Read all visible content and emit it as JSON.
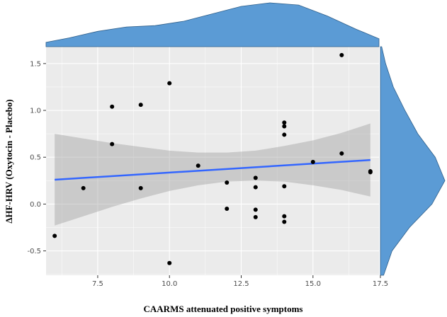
{
  "chart_data": {
    "type": "scatter",
    "title": "",
    "xlabel": "CAARMS attenuated positive symptoms",
    "ylabel": "ΔHF-HRV (Oxytocin - Placebo)",
    "xlim": [
      5.7,
      17.3
    ],
    "ylim": [
      -0.76,
      1.68
    ],
    "x_ticks": [
      7.5,
      10.0,
      12.5,
      15.0,
      17.5
    ],
    "x_tick_labels": [
      "7.5",
      "10.0",
      "12.5",
      "15.0",
      "17.5"
    ],
    "y_ticks": [
      -0.5,
      0.0,
      0.5,
      1.0,
      1.5
    ],
    "y_tick_labels": [
      "-0.5",
      "0.0",
      "0.5",
      "1.0",
      "1.5"
    ],
    "grid": true,
    "series": [
      {
        "name": "observations",
        "points": [
          {
            "x": 6,
            "y": -0.34
          },
          {
            "x": 7,
            "y": 0.17
          },
          {
            "x": 8,
            "y": 1.04
          },
          {
            "x": 8,
            "y": 0.64
          },
          {
            "x": 9,
            "y": 1.06
          },
          {
            "x": 9,
            "y": 0.17
          },
          {
            "x": 10,
            "y": 1.29
          },
          {
            "x": 10,
            "y": -0.63
          },
          {
            "x": 11,
            "y": 0.41
          },
          {
            "x": 12,
            "y": 0.23
          },
          {
            "x": 12,
            "y": -0.05
          },
          {
            "x": 13,
            "y": 0.28
          },
          {
            "x": 13,
            "y": 0.18
          },
          {
            "x": 13,
            "y": -0.06
          },
          {
            "x": 13,
            "y": -0.14
          },
          {
            "x": 14,
            "y": 0.87
          },
          {
            "x": 14,
            "y": 0.83
          },
          {
            "x": 14,
            "y": 0.74
          },
          {
            "x": 14,
            "y": 0.19
          },
          {
            "x": 14,
            "y": -0.13
          },
          {
            "x": 14,
            "y": -0.19
          },
          {
            "x": 15,
            "y": 0.45
          },
          {
            "x": 16,
            "y": 1.59
          },
          {
            "x": 16,
            "y": 0.54
          },
          {
            "x": 17,
            "y": 0.35
          },
          {
            "x": 17,
            "y": 0.34
          }
        ]
      }
    ],
    "regression": {
      "x": [
        6,
        17
      ],
      "y": [
        0.26,
        0.47
      ],
      "ci_x": [
        6,
        7,
        8,
        9,
        10,
        11,
        12,
        13,
        14,
        15,
        16,
        17
      ],
      "ci_upper": [
        0.75,
        0.7,
        0.65,
        0.61,
        0.57,
        0.55,
        0.55,
        0.57,
        0.62,
        0.68,
        0.76,
        0.86
      ],
      "ci_lower": [
        -0.23,
        -0.13,
        -0.03,
        0.06,
        0.14,
        0.2,
        0.24,
        0.25,
        0.24,
        0.2,
        0.15,
        0.08
      ]
    },
    "x_density": {
      "x": [
        5.7,
        6.5,
        7.5,
        8.5,
        9.5,
        10.5,
        11.5,
        12.5,
        13.5,
        14.5,
        15.5,
        16.5,
        17.3
      ],
      "density": [
        0.1,
        0.2,
        0.35,
        0.45,
        0.48,
        0.58,
        0.75,
        0.92,
        1.0,
        0.95,
        0.7,
        0.4,
        0.18
      ]
    },
    "y_density": {
      "y": [
        -0.76,
        -0.5,
        -0.25,
        0.0,
        0.25,
        0.5,
        0.75,
        1.0,
        1.25,
        1.5,
        1.68
      ],
      "density": [
        0.05,
        0.18,
        0.45,
        0.8,
        1.0,
        0.85,
        0.58,
        0.38,
        0.2,
        0.08,
        0.02
      ]
    },
    "colors": {
      "panel": "#ebebeb",
      "grid_major": "#ffffff",
      "points": "#000000",
      "line": "#3366ff",
      "ribbon": "#999999",
      "marginal_fill": "#5b9bd5",
      "marginal_stroke": "#2f5f8a"
    }
  }
}
